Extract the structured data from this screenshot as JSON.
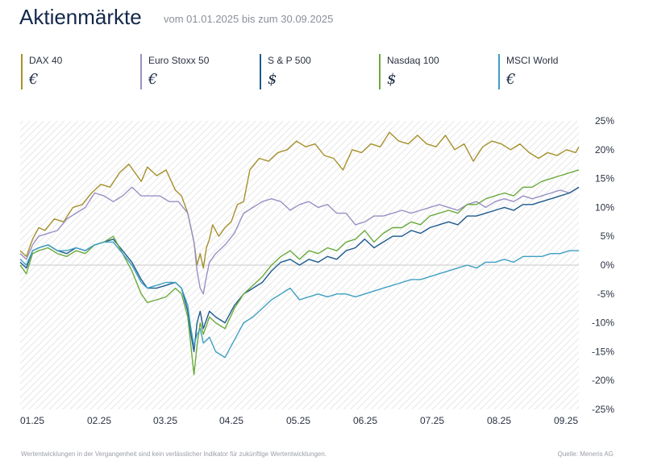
{
  "header": {
    "title": "Aktienmärkte",
    "subtitle": "vom 01.01.2025 bis zum 30.09.2025"
  },
  "footer": {
    "disclaimer": "Wertentwicklungen in der Vergangenheit sind kein verlässlicher Indikator für zukünftige Wertentwicklungen.",
    "source": "Quelle: Meneris AG"
  },
  "colors": {
    "dax": "#a5902b",
    "stoxx": "#9990c4",
    "sp": "#1d5a8e",
    "nasdaq": "#6aaa3c",
    "msci": "#3ea0c2"
  },
  "chart_data": {
    "type": "line",
    "title": "Aktienmärkte",
    "subtitle": "vom 01.01.2025 bis zum 30.09.2025",
    "x_unit": "month",
    "xlim": [
      0,
      9
    ],
    "ylim": [
      -25,
      25
    ],
    "yticks": [
      -25,
      -20,
      -15,
      -10,
      -5,
      0,
      5,
      10,
      15,
      20,
      25
    ],
    "ytick_labels": [
      "-25%",
      "-20%",
      "-15%",
      "-10%",
      "-5%",
      "0%",
      "5%",
      "10%",
      "15%",
      "20%",
      "25%"
    ],
    "xticks": [
      0,
      1,
      2,
      3,
      4,
      5,
      6,
      7,
      8,
      9
    ],
    "xtick_labels": [
      "01.25",
      "02.25",
      "03.25",
      "04.25",
      "05.25",
      "06.25",
      "07.25",
      "08.25",
      "09.25"
    ],
    "grid": false,
    "background": "hatched",
    "legend_position": "top",
    "series": [
      {
        "name": "DAX 40",
        "currency": "€",
        "color": "#a5902b",
        "x": [
          0,
          0.1,
          0.2,
          0.3,
          0.4,
          0.55,
          0.7,
          0.85,
          1.0,
          1.15,
          1.3,
          1.45,
          1.6,
          1.75,
          1.85,
          1.95,
          2.05,
          2.2,
          2.35,
          2.5,
          2.6,
          2.7,
          2.8,
          2.85,
          2.9,
          2.95,
          3.0,
          3.05,
          3.1,
          3.2,
          3.3,
          3.4,
          3.5,
          3.6,
          3.7,
          3.85,
          4.0,
          4.15,
          4.3,
          4.45,
          4.6,
          4.75,
          4.9,
          5.05,
          5.2,
          5.35,
          5.5,
          5.65,
          5.8,
          5.95,
          6.1,
          6.25,
          6.4,
          6.55,
          6.7,
          6.85,
          7.0,
          7.15,
          7.3,
          7.45,
          7.6,
          7.75,
          7.9,
          8.05,
          8.2,
          8.35,
          8.5,
          8.65,
          8.8,
          8.95,
          9.0
        ],
        "y": [
          2.5,
          1.5,
          4.5,
          6.5,
          6.0,
          8.0,
          7.5,
          10.0,
          10.5,
          12.5,
          14.0,
          13.5,
          16.0,
          17.5,
          16.0,
          14.5,
          17.0,
          15.5,
          16.5,
          13.0,
          12.0,
          9.0,
          4.0,
          0.0,
          2.0,
          -0.5,
          3.0,
          4.5,
          7.0,
          5.0,
          6.5,
          7.5,
          10.5,
          11.0,
          16.5,
          18.5,
          18.0,
          19.5,
          20.0,
          21.5,
          20.5,
          21.0,
          19.0,
          18.5,
          16.5,
          20.0,
          19.5,
          21.0,
          20.5,
          23.0,
          21.5,
          21.0,
          22.5,
          21.0,
          20.5,
          22.5,
          20.0,
          21.0,
          18.0,
          20.5,
          21.5,
          21.0,
          20.0,
          21.0,
          19.5,
          18.5,
          19.5,
          19.0,
          20.0,
          19.5,
          20.5
        ]
      },
      {
        "name": "Euro Stoxx 50",
        "currency": "€",
        "color": "#9990c4",
        "x": [
          0,
          0.1,
          0.2,
          0.3,
          0.45,
          0.6,
          0.75,
          0.9,
          1.05,
          1.2,
          1.35,
          1.5,
          1.65,
          1.8,
          1.95,
          2.1,
          2.25,
          2.4,
          2.55,
          2.7,
          2.8,
          2.85,
          2.9,
          2.95,
          3.0,
          3.05,
          3.15,
          3.3,
          3.45,
          3.6,
          3.75,
          3.9,
          4.05,
          4.2,
          4.35,
          4.5,
          4.65,
          4.8,
          4.95,
          5.1,
          5.25,
          5.4,
          5.55,
          5.7,
          5.85,
          6.0,
          6.15,
          6.3,
          6.45,
          6.6,
          6.75,
          6.9,
          7.05,
          7.2,
          7.35,
          7.5,
          7.65,
          7.8,
          7.95,
          8.1,
          8.25,
          8.4,
          8.55,
          8.7,
          8.85,
          9.0
        ],
        "y": [
          2.0,
          1.0,
          3.5,
          5.0,
          5.5,
          6.0,
          8.0,
          9.0,
          10.0,
          12.5,
          12.0,
          11.0,
          12.0,
          13.5,
          12.0,
          12.0,
          12.0,
          11.0,
          11.0,
          9.0,
          4.0,
          -1.0,
          -4.0,
          -5.0,
          -2.0,
          0.5,
          2.0,
          3.5,
          5.5,
          9.0,
          10.0,
          11.0,
          11.5,
          11.0,
          9.5,
          10.5,
          11.0,
          10.0,
          10.5,
          9.0,
          9.0,
          7.0,
          7.5,
          8.5,
          8.5,
          9.0,
          9.5,
          9.0,
          9.5,
          10.0,
          10.5,
          10.0,
          9.5,
          10.5,
          11.0,
          10.0,
          11.0,
          11.5,
          11.0,
          12.0,
          11.5,
          12.0,
          12.5,
          13.0,
          12.5,
          13.5
        ]
      },
      {
        "name": "S & P 500",
        "currency": "$",
        "color": "#1d5a8e",
        "x": [
          0,
          0.1,
          0.2,
          0.3,
          0.45,
          0.6,
          0.75,
          0.9,
          1.05,
          1.2,
          1.35,
          1.5,
          1.65,
          1.8,
          1.95,
          2.05,
          2.2,
          2.35,
          2.5,
          2.6,
          2.7,
          2.75,
          2.8,
          2.85,
          2.9,
          2.95,
          3.0,
          3.05,
          3.15,
          3.3,
          3.45,
          3.6,
          3.75,
          3.9,
          4.05,
          4.2,
          4.35,
          4.5,
          4.65,
          4.8,
          4.95,
          5.1,
          5.25,
          5.4,
          5.55,
          5.7,
          5.85,
          6.0,
          6.15,
          6.3,
          6.45,
          6.6,
          6.75,
          6.9,
          7.05,
          7.2,
          7.35,
          7.5,
          7.65,
          7.8,
          7.95,
          8.1,
          8.25,
          8.4,
          8.55,
          8.7,
          8.85,
          9.0
        ],
        "y": [
          0.5,
          -0.5,
          2.5,
          3.0,
          3.5,
          2.5,
          2.0,
          3.0,
          2.5,
          3.5,
          4.0,
          4.5,
          2.5,
          0.5,
          -2.5,
          -4.0,
          -4.0,
          -3.5,
          -3.0,
          -4.0,
          -8.0,
          -12.0,
          -15.0,
          -10.0,
          -8.0,
          -11.0,
          -9.5,
          -8.0,
          -9.0,
          -10.0,
          -7.0,
          -5.0,
          -4.0,
          -3.0,
          -1.0,
          0.5,
          1.0,
          0.0,
          1.0,
          0.5,
          1.5,
          1.0,
          2.5,
          3.0,
          4.5,
          3.0,
          4.0,
          5.0,
          5.0,
          6.0,
          5.5,
          6.5,
          7.0,
          7.5,
          7.0,
          8.5,
          8.5,
          9.0,
          9.5,
          10.0,
          9.5,
          10.5,
          10.5,
          11.0,
          11.5,
          12.0,
          12.5,
          13.5
        ]
      },
      {
        "name": "Nasdaq 100",
        "currency": "$",
        "color": "#6aaa3c",
        "x": [
          0,
          0.1,
          0.2,
          0.3,
          0.45,
          0.6,
          0.75,
          0.9,
          1.05,
          1.2,
          1.35,
          1.5,
          1.65,
          1.8,
          1.95,
          2.05,
          2.2,
          2.35,
          2.5,
          2.6,
          2.7,
          2.75,
          2.8,
          2.85,
          2.9,
          2.95,
          3.0,
          3.05,
          3.15,
          3.3,
          3.45,
          3.6,
          3.75,
          3.9,
          4.05,
          4.2,
          4.35,
          4.5,
          4.65,
          4.8,
          4.95,
          5.1,
          5.25,
          5.4,
          5.55,
          5.7,
          5.85,
          6.0,
          6.15,
          6.3,
          6.45,
          6.6,
          6.75,
          6.9,
          7.05,
          7.2,
          7.35,
          7.5,
          7.65,
          7.8,
          7.95,
          8.1,
          8.25,
          8.4,
          8.55,
          8.7,
          8.85,
          9.0
        ],
        "y": [
          0.0,
          -1.5,
          2.0,
          2.5,
          3.0,
          2.0,
          1.5,
          2.5,
          2.0,
          3.5,
          4.0,
          5.0,
          2.0,
          -1.0,
          -5.0,
          -6.5,
          -6.0,
          -5.5,
          -4.0,
          -5.0,
          -9.0,
          -14.0,
          -19.0,
          -14.0,
          -10.0,
          -12.0,
          -10.5,
          -9.0,
          -10.0,
          -11.0,
          -7.5,
          -5.0,
          -3.5,
          -2.0,
          0.0,
          1.5,
          2.5,
          1.0,
          2.5,
          2.0,
          3.0,
          2.5,
          4.0,
          4.5,
          6.0,
          4.0,
          5.5,
          6.5,
          6.5,
          7.5,
          7.0,
          8.5,
          9.0,
          9.5,
          9.0,
          10.5,
          10.5,
          11.5,
          12.0,
          12.5,
          12.0,
          13.5,
          13.5,
          14.5,
          15.0,
          15.5,
          16.0,
          16.5
        ]
      },
      {
        "name": "MSCI World",
        "currency": "€",
        "color": "#3ea0c2",
        "x": [
          0,
          0.1,
          0.2,
          0.3,
          0.45,
          0.6,
          0.75,
          0.9,
          1.05,
          1.2,
          1.35,
          1.5,
          1.65,
          1.8,
          1.95,
          2.05,
          2.2,
          2.35,
          2.5,
          2.6,
          2.7,
          2.75,
          2.8,
          2.85,
          2.9,
          2.95,
          3.0,
          3.05,
          3.15,
          3.3,
          3.45,
          3.6,
          3.75,
          3.9,
          4.05,
          4.2,
          4.35,
          4.5,
          4.65,
          4.8,
          4.95,
          5.1,
          5.25,
          5.4,
          5.55,
          5.7,
          5.85,
          6.0,
          6.15,
          6.3,
          6.45,
          6.6,
          6.75,
          6.9,
          7.05,
          7.2,
          7.35,
          7.5,
          7.65,
          7.8,
          7.95,
          8.1,
          8.25,
          8.4,
          8.55,
          8.7,
          8.85,
          9.0
        ],
        "y": [
          1.0,
          0.0,
          2.5,
          3.0,
          3.5,
          2.5,
          2.5,
          3.0,
          2.5,
          3.5,
          4.0,
          4.0,
          2.0,
          0.0,
          -3.0,
          -4.0,
          -3.5,
          -3.0,
          -3.0,
          -4.0,
          -7.0,
          -11.0,
          -14.0,
          -12.0,
          -11.0,
          -13.5,
          -13.0,
          -12.5,
          -15.0,
          -16.0,
          -13.0,
          -10.0,
          -9.0,
          -7.5,
          -6.0,
          -5.0,
          -4.0,
          -6.0,
          -5.5,
          -5.0,
          -5.5,
          -5.0,
          -5.0,
          -5.5,
          -5.0,
          -4.5,
          -4.0,
          -3.5,
          -3.0,
          -2.5,
          -2.5,
          -2.0,
          -1.5,
          -1.0,
          -0.5,
          0.0,
          -0.5,
          0.5,
          0.5,
          1.0,
          0.5,
          1.5,
          1.5,
          1.5,
          2.0,
          2.0,
          2.5,
          2.5
        ]
      }
    ]
  }
}
